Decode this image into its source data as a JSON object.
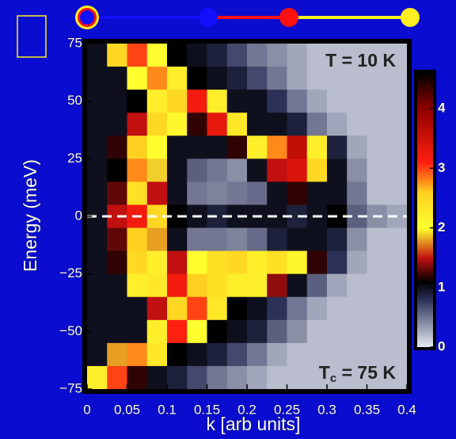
{
  "chart_data": {
    "type": "heatmap",
    "xlabel": "k [arb units]",
    "ylabel": "Energy (meV)",
    "annotations": {
      "top": "T = 10 K",
      "bottom_main": "T",
      "bottom_sub": "c",
      "bottom_rest": " = 75 K"
    },
    "xbins": [
      0,
      0.025,
      0.05,
      0.075,
      0.1,
      0.125,
      0.15,
      0.175,
      0.2,
      0.225,
      0.25,
      0.275,
      0.3,
      0.325,
      0.35,
      0.375,
      0.4
    ],
    "ybins": [
      75,
      65,
      55,
      45,
      35,
      25,
      15,
      5,
      -5,
      -15,
      -25,
      -35,
      -45,
      -55,
      -65,
      -75
    ],
    "z": [
      [
        1,
        2.5,
        3,
        2,
        1.1,
        1,
        0.9,
        0.7,
        0.5,
        0.4,
        0.3,
        0.2,
        0.2,
        0.2,
        0.2,
        0.2
      ],
      [
        1,
        1,
        2,
        2.8,
        2.2,
        1.1,
        1,
        0.9,
        0.7,
        0.5,
        0.3,
        0.2,
        0.2,
        0.2,
        0.2,
        0.2
      ],
      [
        1,
        1,
        1.1,
        2.2,
        2.5,
        3.2,
        2.2,
        1,
        1,
        0.8,
        0.5,
        0.3,
        0.2,
        0.2,
        0.2,
        0.2
      ],
      [
        1,
        1,
        1.5,
        2.5,
        2.1,
        1.2,
        3.3,
        2.3,
        1,
        1,
        0.9,
        0.5,
        0.3,
        0.2,
        0.2,
        0.2
      ],
      [
        1,
        1.2,
        2.6,
        2,
        1,
        1,
        1,
        1.2,
        2.2,
        2.8,
        3.6,
        2.2,
        0.9,
        0.3,
        0.2,
        0.2
      ],
      [
        1,
        1.1,
        2.8,
        1.9,
        1,
        0.6,
        0.5,
        0.4,
        1,
        1.5,
        3.4,
        2.5,
        1,
        0.4,
        0.2,
        0.2
      ],
      [
        1,
        1.3,
        2.4,
        1.5,
        1,
        0.5,
        0.45,
        0.5,
        0.55,
        1,
        1.2,
        1,
        1,
        0.5,
        0.2,
        0.2
      ],
      [
        1,
        1.5,
        3.2,
        2.5,
        1.1,
        1,
        0.9,
        1,
        1,
        1,
        0.9,
        1,
        1.1,
        0.6,
        0.4,
        0.3
      ],
      [
        1,
        1.3,
        2.6,
        1.8,
        1,
        0.5,
        0.5,
        0.45,
        0.55,
        0.9,
        1,
        1,
        0.9,
        0.4,
        0.2,
        0.2
      ],
      [
        1,
        1.2,
        2.5,
        2.2,
        1.5,
        2,
        2.4,
        2.5,
        2.2,
        2.4,
        2.1,
        1.2,
        0.8,
        0.3,
        0.2,
        0.2
      ],
      [
        1,
        1,
        2.2,
        2.3,
        3.2,
        2.6,
        2.4,
        2.2,
        2.2,
        1.4,
        1,
        0.6,
        0.3,
        0.2,
        0.2,
        0.2
      ],
      [
        1,
        1,
        1,
        1.5,
        2.5,
        3,
        2.3,
        1.1,
        1,
        0.8,
        0.5,
        0.3,
        0.2,
        0.2,
        0.2,
        0.2
      ],
      [
        1,
        1,
        1,
        2.2,
        3.1,
        2,
        1.1,
        1,
        0.9,
        0.6,
        0.4,
        0.2,
        0.2,
        0.2,
        0.2,
        0.2
      ],
      [
        1,
        1.8,
        2.8,
        2.3,
        1.1,
        1,
        0.9,
        0.7,
        0.5,
        0.3,
        0.2,
        0.2,
        0.2,
        0.2,
        0.2,
        0.2
      ],
      [
        2.2,
        3,
        1.2,
        1,
        0.9,
        0.7,
        0.5,
        0.4,
        0.3,
        0.2,
        0.2,
        0.2,
        0.2,
        0.2,
        0.2,
        0.2
      ]
    ],
    "xlim": [
      0,
      0.4
    ],
    "ylim": [
      -75,
      75
    ],
    "xticks": [
      0,
      0.05,
      0.1,
      0.15,
      0.2,
      0.25,
      0.3,
      0.35,
      0.4
    ],
    "yticks": [
      {
        "value": 75,
        "label": "75"
      },
      50,
      25,
      0,
      {
        "value": -25,
        "label": "−25"
      },
      {
        "value": -50,
        "label": "−50"
      },
      {
        "value": -75,
        "label": "−75"
      }
    ],
    "hline": 0,
    "clim": [
      0,
      4.6
    ],
    "cticks": [
      0,
      1,
      2,
      3,
      4
    ],
    "colormap": [
      [
        0,
        "#e8ecf4"
      ],
      [
        0.8,
        "#2c3158"
      ],
      [
        1.1,
        "#000000"
      ],
      [
        1.5,
        "#c01010"
      ],
      [
        2,
        "#ffff30"
      ],
      [
        2.6,
        "#ffd020"
      ],
      [
        3.1,
        "#ff2010"
      ],
      [
        4,
        "#900000"
      ],
      [
        4.6,
        "#000000"
      ]
    ]
  }
}
